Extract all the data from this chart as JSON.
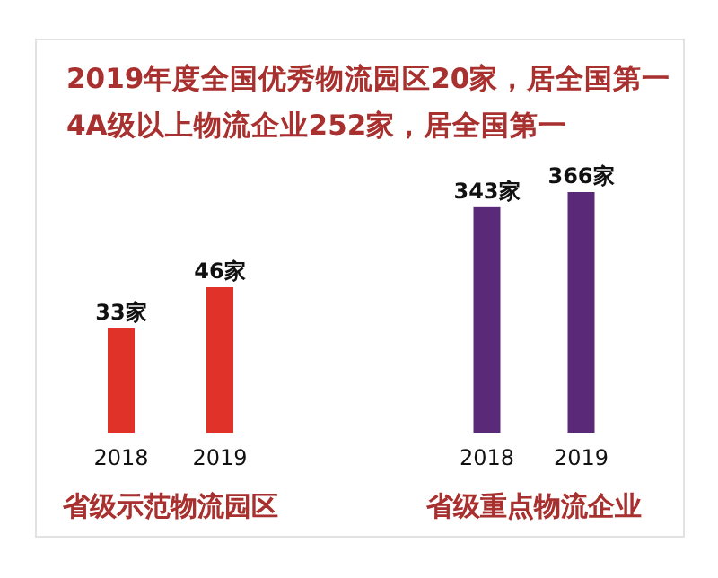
{
  "chart_data": [
    {
      "type": "bar",
      "title": "2019年度全国优秀物流园区20家，居全国第一",
      "subtitle": "4A级以上物流企业252家，居全国第一",
      "xlabel": "省级示范物流园区",
      "categories": [
        "2018",
        "2019"
      ],
      "values": [
        33,
        46
      ],
      "value_labels": [
        "33家",
        "46家"
      ],
      "color": "#e03228"
    },
    {
      "type": "bar",
      "xlabel": "省级重点物流企业",
      "categories": [
        "2018",
        "2019"
      ],
      "values": [
        343,
        366
      ],
      "value_labels": [
        "343家",
        "366家"
      ],
      "color": "#5a2a78"
    }
  ]
}
